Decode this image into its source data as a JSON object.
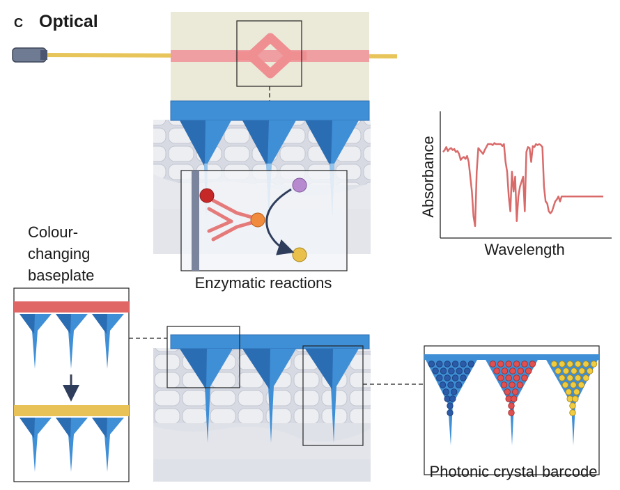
{
  "panel": {
    "letter": "c",
    "title": "Optical"
  },
  "labels": {
    "enzymatic": "Enzymatic reactions",
    "colour_line1": "Colour-",
    "colour_line2": "changing",
    "colour_line3": "baseplate",
    "photonic": "Photonic crystal barcode"
  },
  "chart_data": {
    "type": "line",
    "xlabel": "Wavelength",
    "ylabel": "Absorbance",
    "x": [
      0,
      1,
      2,
      3,
      4,
      5,
      6,
      7,
      8,
      9,
      10,
      11,
      12,
      13,
      14,
      15,
      16,
      17,
      18,
      19,
      20,
      21,
      22,
      23,
      24,
      25,
      26,
      27,
      28,
      29,
      30,
      31,
      32,
      33,
      34,
      35,
      36,
      37,
      38,
      39,
      40,
      41,
      42,
      43,
      44,
      45,
      46,
      47,
      48,
      49,
      50,
      51,
      52,
      53,
      54,
      55,
      56,
      57,
      58,
      59,
      60,
      61,
      62,
      63,
      64,
      65,
      66,
      67,
      68,
      69,
      70,
      71,
      72,
      73,
      74,
      75,
      76,
      77,
      78,
      79,
      80,
      81,
      82,
      83,
      84,
      85,
      86,
      87,
      88,
      89,
      90,
      91,
      92,
      93,
      94,
      95,
      96,
      97,
      98,
      99,
      100
    ],
    "values": [
      0.8,
      0.82,
      0.85,
      0.81,
      0.83,
      0.84,
      0.82,
      0.83,
      0.8,
      0.81,
      0.78,
      0.72,
      0.74,
      0.75,
      0.73,
      0.76,
      0.7,
      0.55,
      0.4,
      0.15,
      0.05,
      0.6,
      0.84,
      0.82,
      0.8,
      0.78,
      0.82,
      0.85,
      0.88,
      0.88,
      0.88,
      0.87,
      0.89,
      0.88,
      0.88,
      0.88,
      0.88,
      0.86,
      0.88,
      0.7,
      0.6,
      0.35,
      0.2,
      0.6,
      0.4,
      0.55,
      0.1,
      0.35,
      0.45,
      0.5,
      0.55,
      0.2,
      0.8,
      0.85,
      0.84,
      0.7,
      0.86,
      0.85,
      0.88,
      0.87,
      0.88,
      0.87,
      0.85,
      0.45,
      0.3,
      0.28,
      0.2,
      0.18,
      0.2,
      0.25,
      0.3,
      0.32,
      0.35,
      0.3,
      0.35,
      0.35,
      0.35,
      0.35,
      0.35,
      0.35,
      0.35,
      0.35,
      0.35,
      0.35,
      0.35,
      0.35,
      0.35,
      0.35,
      0.35,
      0.35,
      0.35,
      0.35,
      0.35,
      0.35,
      0.35,
      0.35,
      0.35,
      0.35,
      0.35,
      0.35,
      0.35
    ],
    "ylim": [
      0,
      1
    ],
    "grid": false,
    "color": "#d96a6a"
  },
  "colors": {
    "needle_blue": "#3f8fd6",
    "needle_dark": "#2b6db3",
    "plate_red": "#e06666",
    "plate_yellow": "#e8c257",
    "laser_red": "#ef8f92",
    "fiber_yellow": "#e8c55a",
    "chip_bg": "#ebe9d8",
    "tissue": "#dfe1e8",
    "dot_blue": "#2a5aa8",
    "dot_red": "#e05050",
    "dot_yellow": "#f0cc40"
  }
}
